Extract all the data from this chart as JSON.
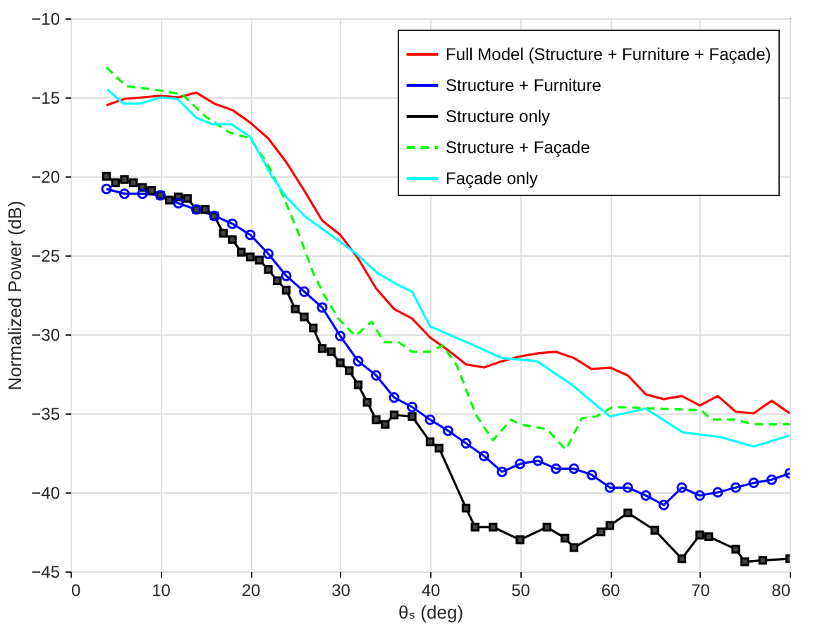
{
  "chart_data": {
    "type": "line",
    "xlabel": "θₛ (deg)",
    "ylabel": "Normalized Power (dB)",
    "xlim": [
      0,
      80
    ],
    "xticks": [
      0,
      10,
      20,
      30,
      40,
      50,
      60,
      70,
      80
    ],
    "ylim": [
      -45,
      -10
    ],
    "yticks": [
      -45,
      -40,
      -35,
      -30,
      -25,
      -20,
      -15,
      -10
    ],
    "grid": true,
    "legend": "top right",
    "series": [
      {
        "name": "Full Model (Structure + Furniture + Façade)",
        "color": "#ff0000",
        "marker": "none",
        "line_style": "solid",
        "x": [
          4,
          6,
          8,
          10,
          12,
          14,
          16,
          18,
          20,
          22,
          24,
          26,
          28,
          30,
          32,
          34,
          36,
          38,
          40,
          42,
          44,
          46,
          48,
          50,
          52,
          54,
          56,
          58,
          60,
          62,
          64,
          66,
          68,
          70,
          72,
          74,
          76,
          78,
          80
        ],
        "values": [
          -15.5,
          -15.1,
          -15.0,
          -14.9,
          -15.0,
          -14.7,
          -15.4,
          -15.8,
          -16.6,
          -17.6,
          -19.1,
          -20.9,
          -22.8,
          -23.7,
          -25.2,
          -27.1,
          -28.4,
          -29.0,
          -30.2,
          -31.0,
          -31.9,
          -32.1,
          -31.7,
          -31.4,
          -31.2,
          -31.1,
          -31.5,
          -32.2,
          -32.1,
          -32.6,
          -33.8,
          -34.1,
          -33.9,
          -34.5,
          -33.9,
          -34.9,
          -35.0,
          -34.2,
          -35.0
        ]
      },
      {
        "name": "Structure + Furniture",
        "color": "#0000ff",
        "marker": "circle",
        "line_style": "solid",
        "x": [
          4,
          6,
          8,
          10,
          12,
          14,
          16,
          18,
          20,
          22,
          24,
          26,
          28,
          30,
          32,
          34,
          36,
          38,
          40,
          42,
          44,
          46,
          48,
          50,
          52,
          54,
          56,
          58,
          60,
          62,
          64,
          66,
          68,
          70,
          72,
          74,
          76,
          78,
          80
        ],
        "values": [
          -20.8,
          -21.1,
          -21.1,
          -21.2,
          -21.7,
          -22.1,
          -22.5,
          -23.0,
          -23.7,
          -24.9,
          -26.3,
          -27.3,
          -28.3,
          -30.1,
          -31.7,
          -32.6,
          -34.0,
          -34.6,
          -35.4,
          -36.1,
          -36.9,
          -37.7,
          -38.7,
          -38.2,
          -38.0,
          -38.5,
          -38.5,
          -38.9,
          -39.7,
          -39.7,
          -40.2,
          -40.8,
          -39.7,
          -40.2,
          -40.0,
          -39.7,
          -39.4,
          -39.2,
          -38.8
        ]
      },
      {
        "name": "Structure only",
        "color": "#000000",
        "marker": "square",
        "line_style": "solid",
        "x": [
          4,
          5,
          6,
          7,
          8,
          9,
          10,
          11,
          12,
          13,
          14,
          15,
          16,
          17,
          18,
          19,
          20,
          21,
          22,
          23,
          24,
          25,
          26,
          27,
          28,
          29,
          30,
          31,
          32,
          33,
          34,
          35,
          36,
          38,
          40,
          41,
          44,
          45,
          47,
          50,
          53,
          55,
          56,
          59,
          60,
          62,
          65,
          68,
          70,
          71,
          74,
          75,
          77,
          80
        ],
        "values": [
          -20.0,
          -20.4,
          -20.2,
          -20.4,
          -20.7,
          -20.9,
          -21.2,
          -21.5,
          -21.3,
          -21.4,
          -22.1,
          -22.1,
          -22.5,
          -23.6,
          -24.0,
          -24.8,
          -25.1,
          -25.3,
          -25.9,
          -26.6,
          -27.2,
          -28.4,
          -28.9,
          -29.6,
          -30.9,
          -31.1,
          -31.8,
          -32.3,
          -33.2,
          -34.3,
          -35.4,
          -35.7,
          -35.1,
          -35.2,
          -36.8,
          -37.2,
          -41.0,
          -42.2,
          -42.2,
          -43.0,
          -42.2,
          -42.9,
          -43.5,
          -42.5,
          -42.1,
          -41.3,
          -42.4,
          -44.2,
          -42.7,
          -42.8,
          -43.6,
          -44.4,
          -44.3,
          -44.2
        ]
      },
      {
        "name": "Structure + Façade",
        "color": "#00ff00",
        "marker": "none",
        "line_style": "dashed",
        "x": [
          4,
          6.2,
          9.3,
          12.4,
          15,
          17.6,
          20,
          21.9,
          23.7,
          25.5,
          27,
          28.2,
          29.8,
          31.7,
          33.5,
          34.9,
          36.5,
          38,
          40,
          41.4,
          43,
          45.1,
          47,
          49,
          50,
          53,
          55.1,
          56.9,
          58.5,
          60.3,
          70.2,
          71.3,
          74,
          76,
          80
        ],
        "values": [
          -13.1,
          -14.3,
          -14.5,
          -14.8,
          -16.2,
          -17.2,
          -17.6,
          -19.2,
          -21.3,
          -23.8,
          -26.1,
          -27.5,
          -29.0,
          -30.1,
          -29.2,
          -30.5,
          -30.5,
          -31.1,
          -31.1,
          -30.7,
          -32.0,
          -35.1,
          -36.7,
          -35.4,
          -35.7,
          -36.0,
          -37.3,
          -35.3,
          -35.2,
          -34.6,
          -34.8,
          -35.4,
          -35.4,
          -35.7,
          -35.7
        ]
      },
      {
        "name": "Façade only",
        "color": "#00ffff",
        "marker": "none",
        "line_style": "solid",
        "x": [
          4.1,
          5.9,
          7.7,
          10.1,
          11.9,
          14,
          15.8,
          17.9,
          20,
          22.4,
          24,
          26,
          28.2,
          31.8,
          34.1,
          36.2,
          38,
          40,
          44.1,
          48,
          51.9,
          55.8,
          60,
          64,
          68.1,
          72.3,
          76,
          80
        ],
        "values": [
          -14.5,
          -15.4,
          -15.4,
          -15.0,
          -15.1,
          -16.3,
          -16.7,
          -16.7,
          -17.5,
          -20.0,
          -21.3,
          -22.5,
          -23.4,
          -24.9,
          -26.1,
          -26.8,
          -27.3,
          -29.5,
          -30.5,
          -31.5,
          -31.7,
          -33.2,
          -35.2,
          -34.7,
          -36.2,
          -36.5,
          -37.1,
          -36.4
        ]
      }
    ]
  }
}
